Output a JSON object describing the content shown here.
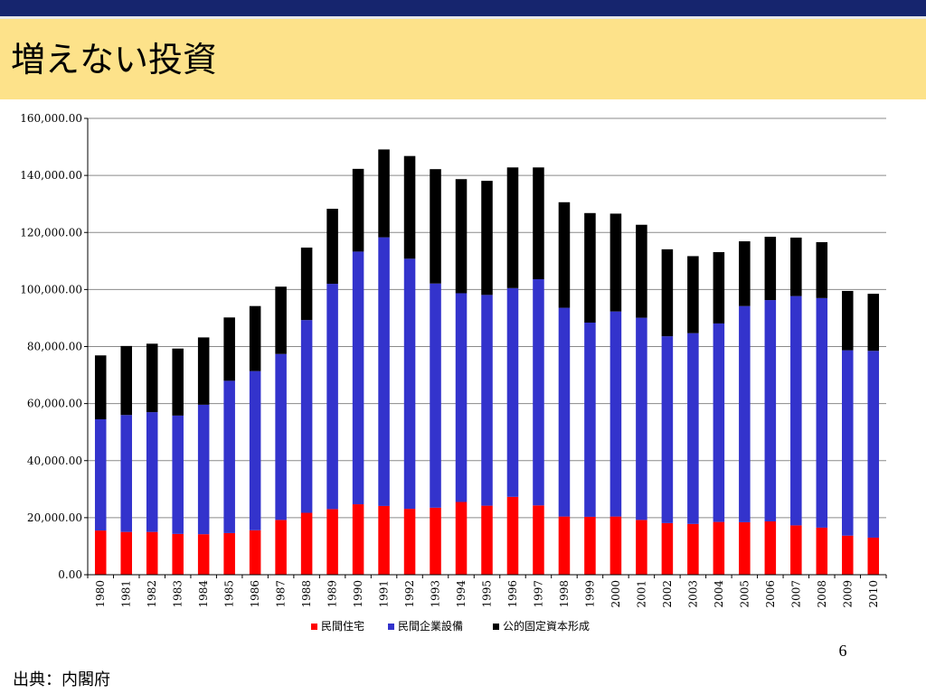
{
  "slide": {
    "title": "増えない投資",
    "page_number": "6",
    "source": "出典：内閣府"
  },
  "colors": {
    "header_stripe": "#16256e",
    "title_band": "#fde28a",
    "series": [
      "#ff0000",
      "#3333cc",
      "#000000"
    ],
    "grid": "#8a8a8a"
  },
  "chart_data": {
    "type": "bar",
    "stacked": true,
    "title": "",
    "xlabel": "",
    "ylabel": "",
    "categories": [
      "1980",
      "1981",
      "1982",
      "1983",
      "1984",
      "1985",
      "1986",
      "1987",
      "1988",
      "1989",
      "1990",
      "1991",
      "1992",
      "1993",
      "1994",
      "1995",
      "1996",
      "1997",
      "1998",
      "1999",
      "2000",
      "2001",
      "2002",
      "2003",
      "2004",
      "2005",
      "2006",
      "2007",
      "2008",
      "2009",
      "2010"
    ],
    "ylim": [
      0,
      160000
    ],
    "yticks": [
      "0.00",
      "20,000.00",
      "40,000.00",
      "60,000.00",
      "80,000.00",
      "100,000.00",
      "120,000.00",
      "140,000.00",
      "160,000.00"
    ],
    "grid": true,
    "legend_position": "bottom",
    "series": [
      {
        "name": "民間住宅",
        "values": [
          15500,
          15000,
          15000,
          14300,
          14200,
          14600,
          15600,
          19200,
          21700,
          23000,
          24700,
          24100,
          23100,
          23500,
          25500,
          24200,
          27300,
          24300,
          20400,
          20300,
          20400,
          19200,
          18100,
          17800,
          18500,
          18400,
          18700,
          17300,
          16500,
          13700,
          13000
        ]
      },
      {
        "name": "民間企業設備",
        "values": [
          39000,
          41000,
          42000,
          41500,
          45400,
          53400,
          55800,
          58200,
          67600,
          79000,
          88600,
          94200,
          87700,
          78600,
          73200,
          73900,
          73200,
          79300,
          73200,
          68100,
          71900,
          70900,
          65500,
          66900,
          69600,
          75800,
          77600,
          80400,
          80500,
          65000,
          65500
        ]
      },
      {
        "name": "公的固定資本形成",
        "values": [
          22400,
          24200,
          24000,
          23500,
          23600,
          22200,
          22800,
          23600,
          25400,
          26300,
          29000,
          30800,
          36000,
          40100,
          40000,
          40000,
          42300,
          39200,
          37000,
          38400,
          34300,
          32600,
          30500,
          27000,
          25000,
          22700,
          22200,
          20500,
          19600,
          20800,
          20000
        ]
      }
    ]
  }
}
